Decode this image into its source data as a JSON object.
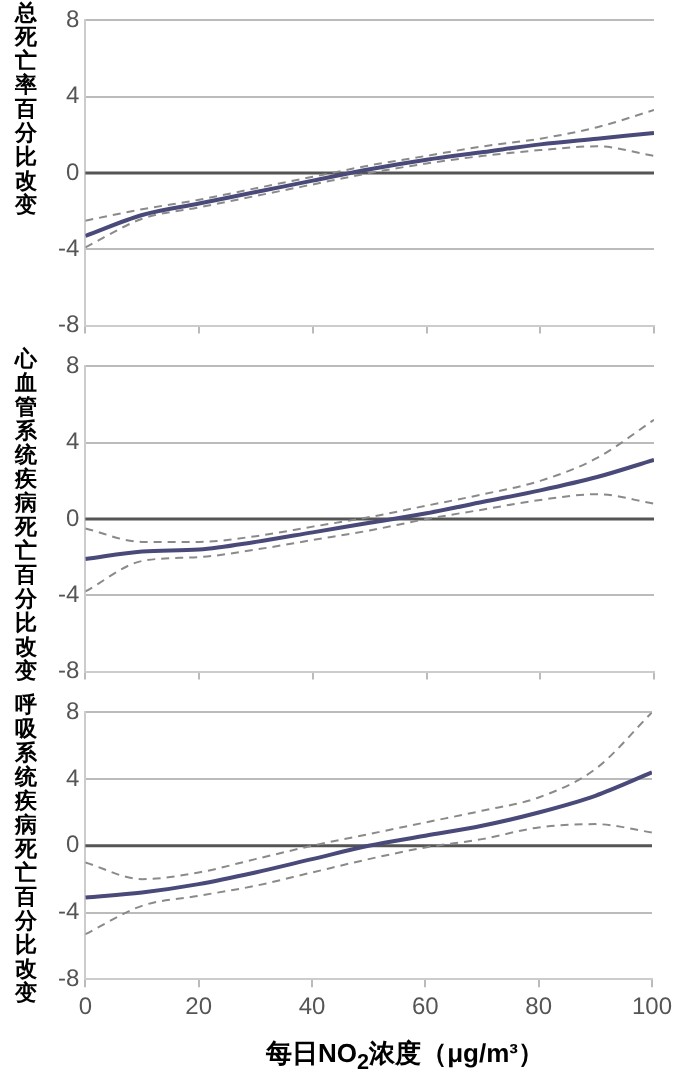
{
  "chart_data": [
    {
      "type": "line",
      "ylabel": "总死亡率百分比改变",
      "x": [
        0,
        10,
        20,
        30,
        40,
        50,
        60,
        70,
        80,
        90,
        100
      ],
      "xlim": [
        0,
        100
      ],
      "xticks": [
        0,
        20,
        40,
        60,
        80,
        100
      ],
      "ylim": [
        -8,
        8
      ],
      "yticks": [
        -8,
        -4,
        0,
        4,
        8
      ],
      "tick_labels": "y",
      "grid": "y",
      "legend": false,
      "marker": "none",
      "ref_lines": [
        {
          "axis": "y",
          "value": 0,
          "color": "#555555"
        }
      ],
      "series": [
        {
          "color": "#4a4a7a",
          "line_style": "solid",
          "values": [
            -3.3,
            -2.2,
            -1.6,
            -1.0,
            -0.4,
            0.2,
            0.7,
            1.1,
            1.5,
            1.8,
            2.1
          ]
        },
        {
          "color": "#8a8a8a",
          "line_style": "dashed",
          "values": [
            -3.9,
            -2.4,
            -1.8,
            -1.2,
            -0.6,
            0.0,
            0.5,
            0.9,
            1.2,
            1.4,
            0.9
          ]
        },
        {
          "color": "#8a8a8a",
          "line_style": "dashed",
          "values": [
            -2.5,
            -1.9,
            -1.4,
            -0.8,
            -0.2,
            0.4,
            0.9,
            1.4,
            1.8,
            2.4,
            3.3
          ]
        }
      ]
    },
    {
      "type": "line",
      "ylabel": "心血管系统疾病死亡百分比改变",
      "x": [
        0,
        10,
        20,
        30,
        40,
        50,
        60,
        70,
        80,
        90,
        100
      ],
      "xlim": [
        0,
        100
      ],
      "xticks": [
        0,
        20,
        40,
        60,
        80,
        100
      ],
      "ylim": [
        -8,
        8
      ],
      "yticks": [
        -8,
        -4,
        0,
        4,
        8
      ],
      "tick_labels": "y",
      "grid": "y",
      "legend": false,
      "marker": "none",
      "ref_lines": [
        {
          "axis": "y",
          "value": 0,
          "color": "#555555"
        }
      ],
      "series": [
        {
          "color": "#4a4a7a",
          "line_style": "solid",
          "values": [
            -2.1,
            -1.7,
            -1.6,
            -1.2,
            -0.7,
            -0.2,
            0.3,
            0.9,
            1.5,
            2.2,
            3.1
          ]
        },
        {
          "color": "#8a8a8a",
          "line_style": "dashed",
          "values": [
            -3.8,
            -2.2,
            -2.0,
            -1.6,
            -1.1,
            -0.6,
            0.0,
            0.5,
            1.0,
            1.3,
            0.8
          ]
        },
        {
          "color": "#8a8a8a",
          "line_style": "dashed",
          "values": [
            -0.5,
            -1.2,
            -1.2,
            -0.9,
            -0.4,
            0.1,
            0.7,
            1.3,
            2.0,
            3.2,
            5.2
          ]
        }
      ]
    },
    {
      "type": "line",
      "ylabel": "呼吸系统疾病死亡百分比改变",
      "xlabel": "每日NO$_{2}$浓度（μg/m³）",
      "x": [
        0,
        10,
        20,
        30,
        40,
        50,
        60,
        70,
        80,
        90,
        100
      ],
      "xlim": [
        0,
        100
      ],
      "xticks": [
        0,
        20,
        40,
        60,
        80,
        100
      ],
      "ylim": [
        -8,
        8
      ],
      "yticks": [
        -8,
        -4,
        0,
        4,
        8
      ],
      "grid": "y",
      "legend": false,
      "marker": "none",
      "ref_lines": [
        {
          "axis": "y",
          "value": 0,
          "color": "#555555"
        }
      ],
      "series": [
        {
          "color": "#4a4a7a",
          "line_style": "solid",
          "values": [
            -3.1,
            -2.8,
            -2.3,
            -1.6,
            -0.8,
            0.0,
            0.6,
            1.2,
            2.0,
            3.0,
            4.4
          ]
        },
        {
          "color": "#8a8a8a",
          "line_style": "dashed",
          "values": [
            -5.3,
            -3.6,
            -3.0,
            -2.4,
            -1.6,
            -0.8,
            -0.1,
            0.4,
            1.1,
            1.3,
            0.8
          ]
        },
        {
          "color": "#8a8a8a",
          "line_style": "dashed",
          "values": [
            -1.0,
            -2.0,
            -1.6,
            -0.8,
            0.0,
            0.7,
            1.4,
            2.1,
            2.9,
            4.6,
            8.0
          ]
        }
      ]
    }
  ]
}
